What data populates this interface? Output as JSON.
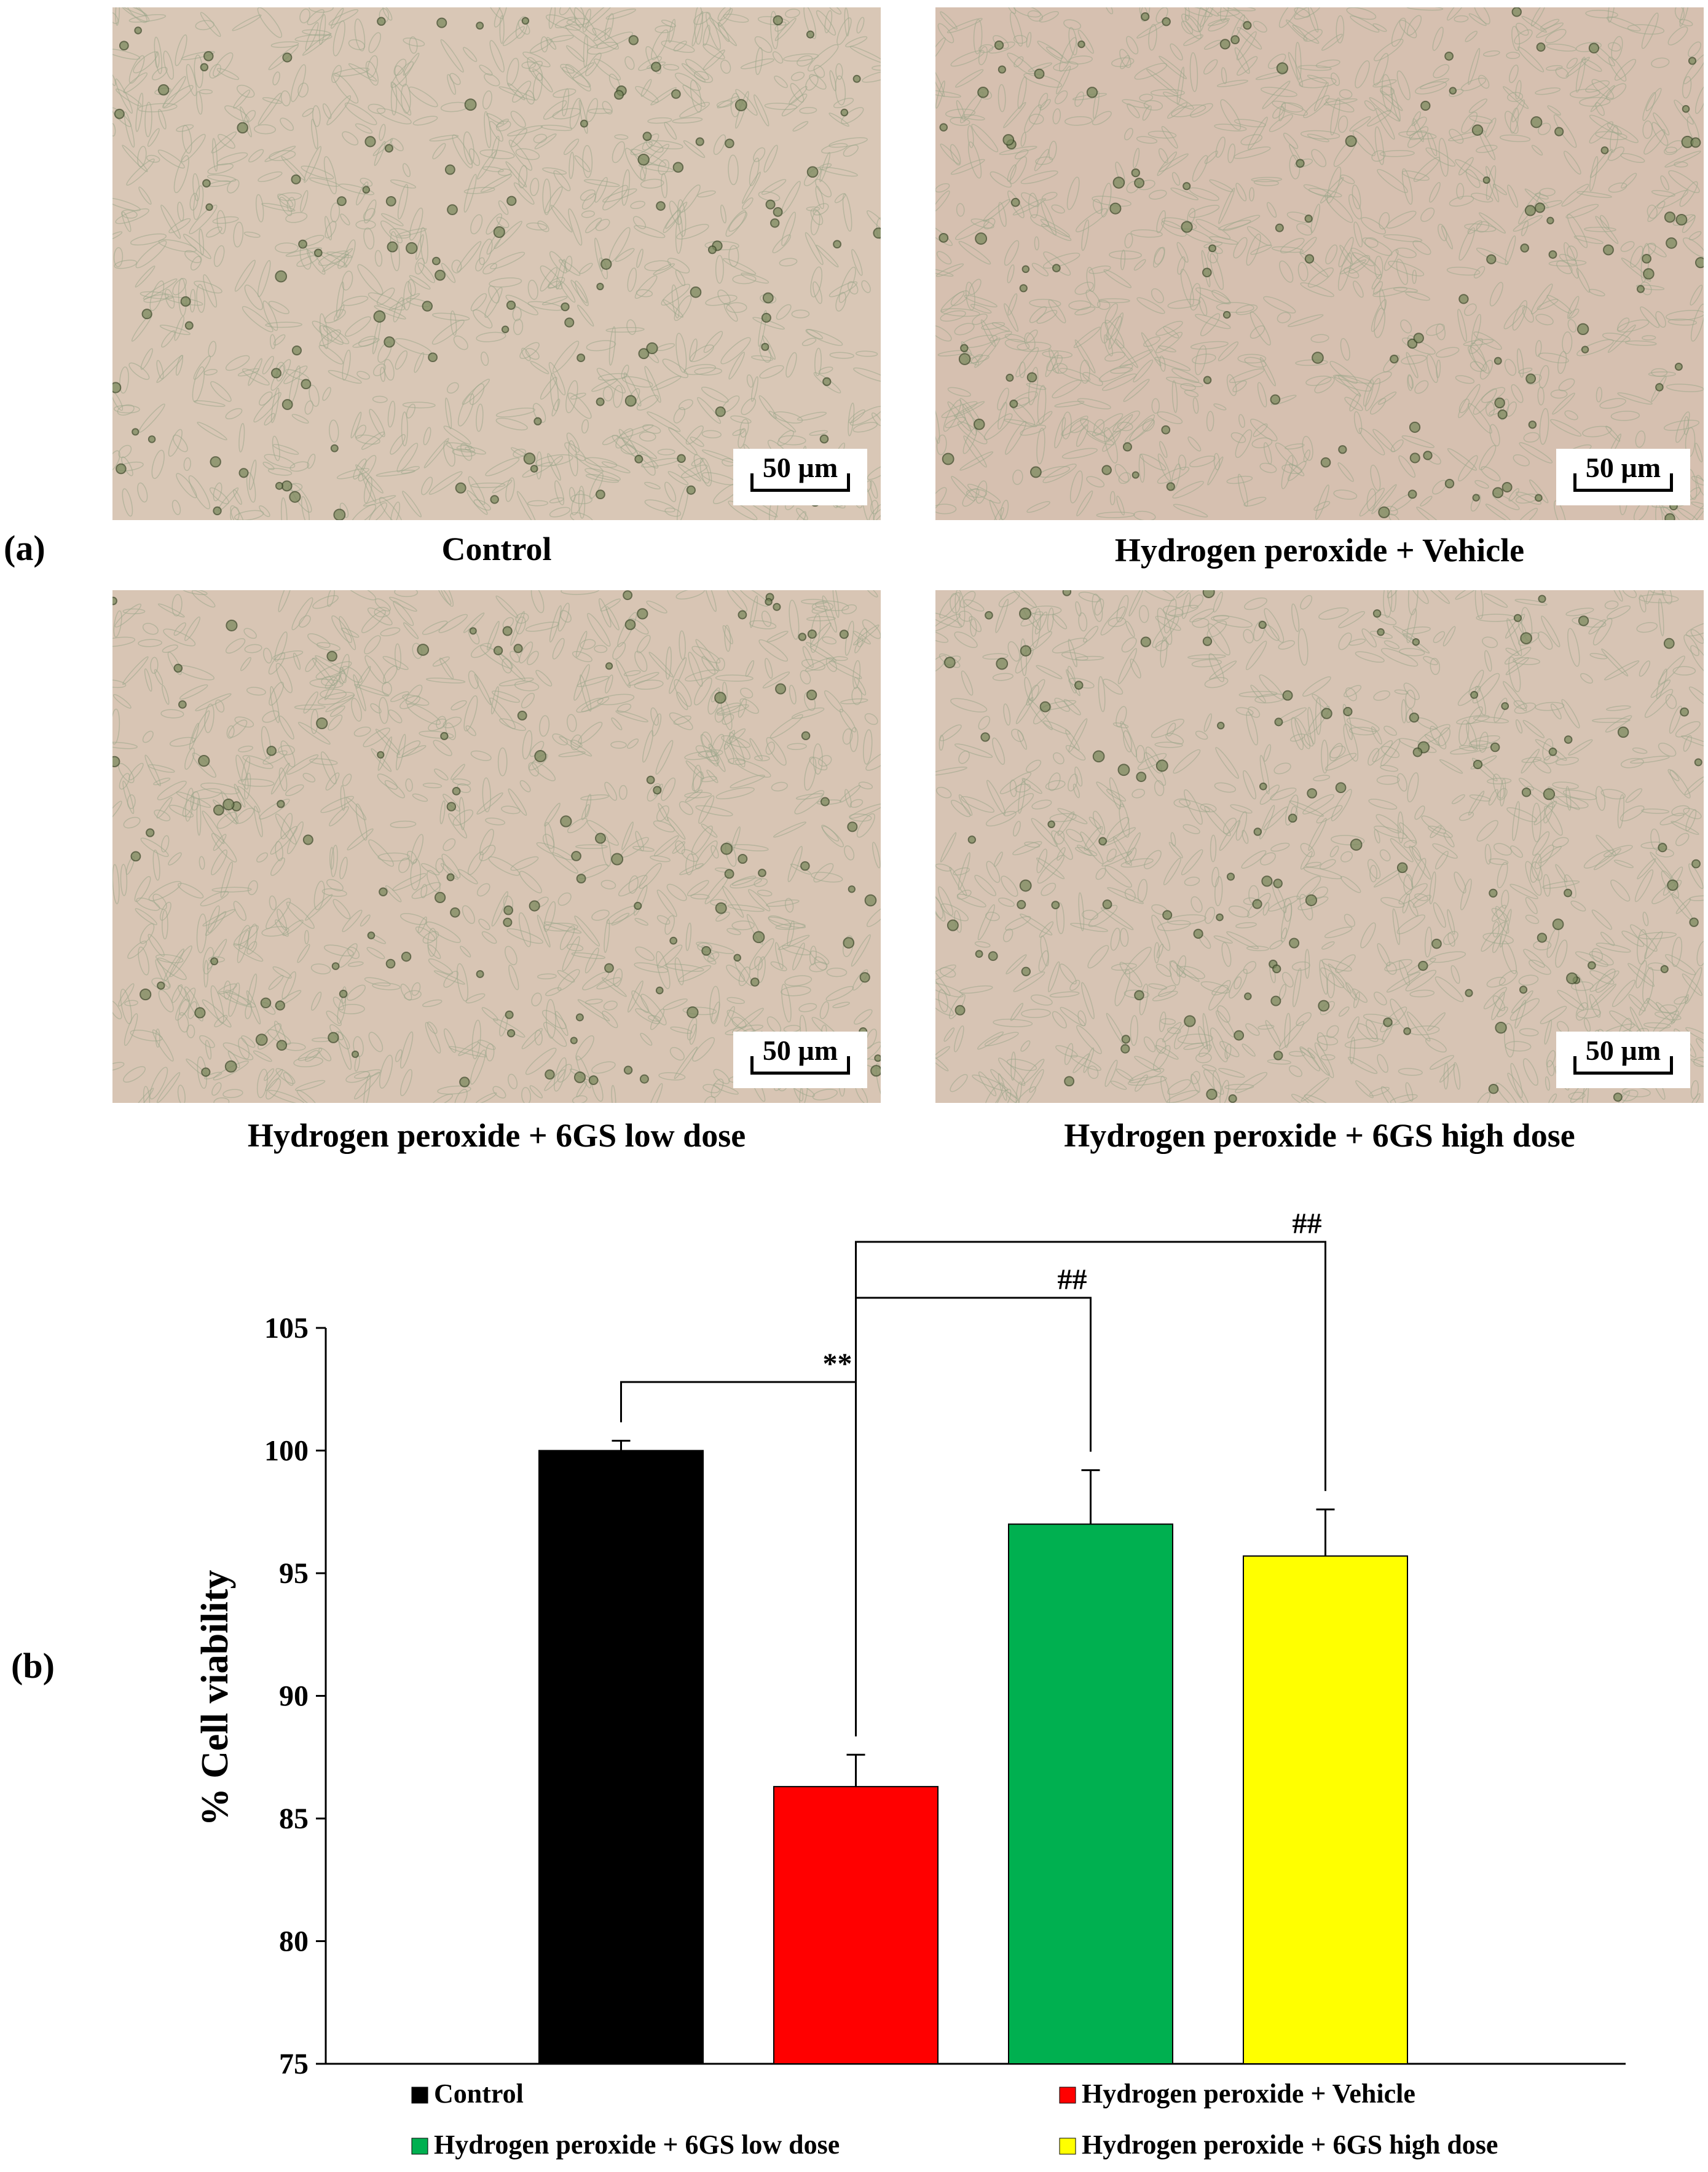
{
  "panel_a": {
    "label": "(a)",
    "images": [
      {
        "caption": "Control",
        "scale_label": "50 µm",
        "tint": "#d9c7b6",
        "seed": 11
      },
      {
        "caption": "Hydrogen peroxide + Vehicle",
        "scale_label": "50 µm",
        "tint": "#d6c0b0",
        "seed": 29
      },
      {
        "caption": "Hydrogen peroxide + 6GS low dose",
        "scale_label": "50 µm",
        "tint": "#d8c5b4",
        "seed": 47
      },
      {
        "caption": "Hydrogen peroxide + 6GS high dose",
        "scale_label": "50 µm",
        "tint": "#d7c4b4",
        "seed": 83
      }
    ]
  },
  "panel_b": {
    "label": "(b)"
  },
  "chart_data": {
    "type": "bar",
    "title": "",
    "xlabel": "",
    "ylabel": "% Cell viability",
    "ylim": [
      75,
      105
    ],
    "yticks": [
      75,
      80,
      85,
      90,
      95,
      100,
      105
    ],
    "grid": false,
    "legend_position": "bottom",
    "categories": [
      "Control",
      "Hydrogen peroxide + Vehicle",
      "Hydrogen peroxide + 6GS low dose",
      "Hydrogen peroxide + 6GS high dose"
    ],
    "values": [
      100.0,
      86.3,
      97.0,
      95.7
    ],
    "errors": [
      0.4,
      1.3,
      2.2,
      1.9
    ],
    "colors": [
      "#000000",
      "#ff0000",
      "#00b050",
      "#ffff00"
    ],
    "annotations": [
      {
        "text": "**",
        "from": 0,
        "to": 1
      },
      {
        "text": "##",
        "from": 1,
        "to": 2
      },
      {
        "text": "##",
        "from": 1,
        "to": 3
      }
    ]
  }
}
